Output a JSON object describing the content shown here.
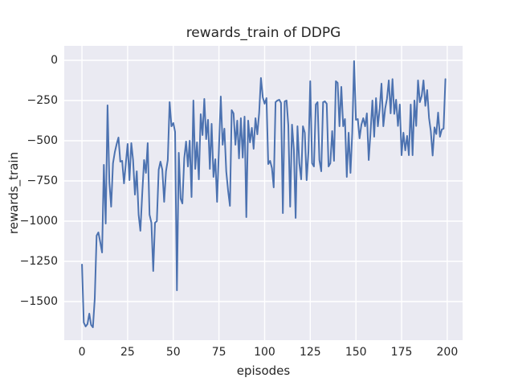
{
  "figure": {
    "bg_color": "#ffffff",
    "text_color": "#262626"
  },
  "chart_data": {
    "type": "line",
    "title": "rewards_train of DDPG",
    "xlabel": "episodes",
    "ylabel": "rewards_train",
    "grid": true,
    "legend": "none",
    "bg_color": "#eaeaf2",
    "grid_color": "#ffffff",
    "line_color": "#4c72b0",
    "xlim": [
      -9.7,
      208.4
    ],
    "ylim": [
      -1740,
      90
    ],
    "xticks": [
      {
        "v": 0,
        "label": "0"
      },
      {
        "v": 25,
        "label": "25"
      },
      {
        "v": 50,
        "label": "50"
      },
      {
        "v": 75,
        "label": "75"
      },
      {
        "v": 100,
        "label": "100"
      },
      {
        "v": 125,
        "label": "125"
      },
      {
        "v": 150,
        "label": "150"
      },
      {
        "v": 175,
        "label": "175"
      },
      {
        "v": 200,
        "label": "200"
      }
    ],
    "yticks": [
      {
        "v": 0,
        "label": "0"
      },
      {
        "v": -250,
        "label": "−250"
      },
      {
        "v": -500,
        "label": "−500"
      },
      {
        "v": -750,
        "label": "−750"
      },
      {
        "v": -1000,
        "label": "−1000"
      },
      {
        "v": -1250,
        "label": "−1250"
      },
      {
        "v": -1500,
        "label": "−1500"
      }
    ],
    "x_start_episode": 0,
    "series": [
      {
        "name": "rewards_train",
        "values": [
          -1270,
          -1630,
          -1655,
          -1640,
          -1575,
          -1645,
          -1660,
          -1480,
          -1090,
          -1070,
          -1130,
          -1195,
          -650,
          -1015,
          -280,
          -760,
          -910,
          -640,
          -570,
          -520,
          -480,
          -630,
          -625,
          -765,
          -645,
          -520,
          -745,
          -515,
          -620,
          -835,
          -690,
          -960,
          -1060,
          -830,
          -620,
          -700,
          -515,
          -960,
          -1010,
          -1310,
          -1010,
          -1000,
          -680,
          -630,
          -680,
          -880,
          -690,
          -620,
          -260,
          -410,
          -390,
          -445,
          -1430,
          -575,
          -860,
          -890,
          -610,
          -505,
          -660,
          -500,
          -850,
          -250,
          -675,
          -510,
          -740,
          -335,
          -465,
          -240,
          -490,
          -370,
          -675,
          -395,
          -725,
          -615,
          -880,
          -550,
          -225,
          -525,
          -425,
          -690,
          -810,
          -905,
          -310,
          -330,
          -525,
          -375,
          -610,
          -360,
          -605,
          -350,
          -975,
          -375,
          -510,
          -420,
          -550,
          -360,
          -460,
          -325,
          -110,
          -230,
          -270,
          -235,
          -645,
          -625,
          -670,
          -790,
          -260,
          -250,
          -245,
          -265,
          -950,
          -255,
          -250,
          -405,
          -910,
          -400,
          -555,
          -980,
          -410,
          -640,
          -740,
          -410,
          -450,
          -745,
          -565,
          -130,
          -640,
          -660,
          -275,
          -260,
          -620,
          -690,
          -260,
          -255,
          -270,
          -660,
          -640,
          -440,
          -625,
          -130,
          -140,
          -410,
          -165,
          -410,
          -365,
          -725,
          -450,
          -700,
          -450,
          -5,
          -370,
          -365,
          -485,
          -400,
          -360,
          -410,
          -330,
          -620,
          -445,
          -250,
          -475,
          -235,
          -410,
          -300,
          -145,
          -410,
          -300,
          -240,
          -125,
          -330,
          -117,
          -333,
          -245,
          -408,
          -275,
          -590,
          -450,
          -560,
          -470,
          -590,
          -275,
          -590,
          -250,
          -408,
          -125,
          -260,
          -220,
          -125,
          -283,
          -185,
          -358,
          -440,
          -592,
          -417,
          -458,
          -325,
          -475,
          -430,
          -425,
          -117
        ]
      }
    ]
  }
}
